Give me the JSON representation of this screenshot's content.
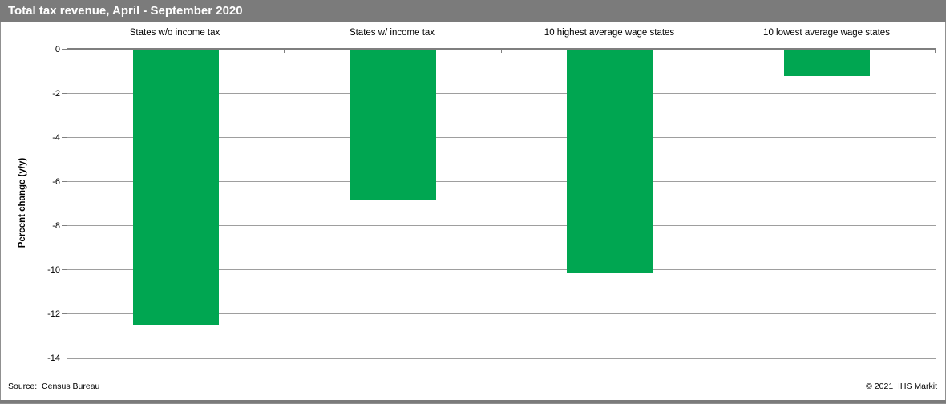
{
  "title_bar": {
    "title": "Total tax revenue, April - September 2020"
  },
  "footer": {
    "source": "Source:  Census Bureau",
    "copyright": "© 2021  IHS Markit"
  },
  "colors": {
    "header_bg": "#7b7b7b",
    "bar_green": "#00a651",
    "gridline": "#9e9e9e",
    "axis": "#7f7f7f"
  },
  "chart_data": {
    "type": "bar",
    "title": "Total tax revenue, April - September 2020",
    "categories": [
      "States w/o income tax",
      "States w/ income tax",
      "10 highest average wage states",
      "10 lowest average wage states"
    ],
    "values": [
      -12.5,
      -6.8,
      -10.1,
      -1.2
    ],
    "xlabel": "",
    "ylabel": "Percent change (y/y)",
    "ylim": [
      -14,
      0
    ],
    "ytick_step": 2,
    "yticks": [
      0,
      -2,
      -4,
      -6,
      -8,
      -10,
      -12,
      -14
    ],
    "bar_color": "#00a651",
    "grid": true,
    "legend": false,
    "source": "Census Bureau",
    "branding": "© 2021 IHS Markit"
  }
}
